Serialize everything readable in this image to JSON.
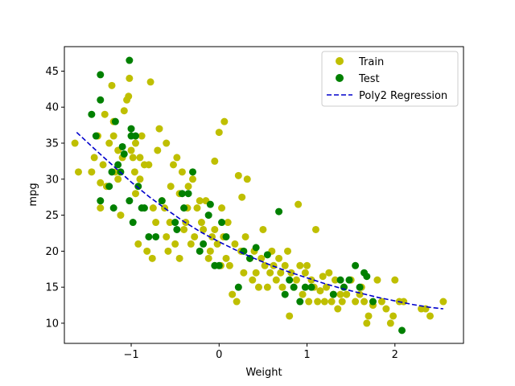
{
  "chart_data": {
    "type": "scatter",
    "title": "",
    "xlabel": "Weight",
    "ylabel": "mpg",
    "xlim": [
      -1.76,
      2.78
    ],
    "ylim": [
      7.2,
      48.4
    ],
    "x_ticks": [
      -1,
      0,
      1,
      2
    ],
    "y_ticks": [
      10,
      15,
      20,
      25,
      30,
      35,
      40,
      45
    ],
    "grid": false,
    "legend_position": "top-right",
    "colors": {
      "train": "#bfbf00",
      "test": "#008000",
      "regression": "#0000cc"
    },
    "legend": [
      {
        "label": "Train",
        "marker": "circle",
        "color": "#bfbf00"
      },
      {
        "label": "Test",
        "marker": "circle",
        "color": "#008000"
      },
      {
        "label": "Poly2 Regression",
        "marker": "dashed-line",
        "color": "#0000cc"
      }
    ],
    "series": [
      {
        "name": "Train",
        "kind": "points",
        "color": "#bfbf00",
        "points": [
          [
            -1.64,
            35
          ],
          [
            -1.6,
            31
          ],
          [
            -1.45,
            31
          ],
          [
            -1.42,
            33
          ],
          [
            -1.38,
            36
          ],
          [
            -1.35,
            26
          ],
          [
            -1.35,
            29.5
          ],
          [
            -1.32,
            32
          ],
          [
            -1.3,
            39
          ],
          [
            -1.28,
            29
          ],
          [
            -1.25,
            35
          ],
          [
            -1.22,
            43
          ],
          [
            -1.2,
            36
          ],
          [
            -1.2,
            38
          ],
          [
            -1.18,
            31
          ],
          [
            -1.15,
            30
          ],
          [
            -1.15,
            34
          ],
          [
            -1.12,
            25
          ],
          [
            -1.1,
            33
          ],
          [
            -1.08,
            39.5
          ],
          [
            -1.05,
            41
          ],
          [
            -1.03,
            41.5
          ],
          [
            -1.02,
            44
          ],
          [
            -1.0,
            34
          ],
          [
            -0.98,
            33
          ],
          [
            -0.96,
            31
          ],
          [
            -0.95,
            28
          ],
          [
            -0.95,
            35
          ],
          [
            -0.92,
            21
          ],
          [
            -0.9,
            33
          ],
          [
            -0.9,
            30
          ],
          [
            -0.88,
            36
          ],
          [
            -0.85,
            32
          ],
          [
            -0.82,
            20
          ],
          [
            -0.8,
            32
          ],
          [
            -0.78,
            43.5
          ],
          [
            -0.76,
            19
          ],
          [
            -0.75,
            26
          ],
          [
            -0.72,
            24
          ],
          [
            -0.7,
            34
          ],
          [
            -0.68,
            37
          ],
          [
            -0.65,
            27
          ],
          [
            -0.62,
            26
          ],
          [
            -0.6,
            22
          ],
          [
            -0.6,
            35
          ],
          [
            -0.58,
            20
          ],
          [
            -0.56,
            24
          ],
          [
            -0.55,
            29
          ],
          [
            -0.52,
            32
          ],
          [
            -0.5,
            21
          ],
          [
            -0.48,
            33
          ],
          [
            -0.45,
            28
          ],
          [
            -0.45,
            19
          ],
          [
            -0.42,
            31
          ],
          [
            -0.4,
            23
          ],
          [
            -0.38,
            24
          ],
          [
            -0.36,
            26
          ],
          [
            -0.35,
            29
          ],
          [
            -0.32,
            21
          ],
          [
            -0.3,
            30
          ],
          [
            -0.28,
            22
          ],
          [
            -0.25,
            26
          ],
          [
            -0.22,
            27
          ],
          [
            -0.2,
            24
          ],
          [
            -0.18,
            23
          ],
          [
            -0.15,
            27
          ],
          [
            -0.12,
            19
          ],
          [
            -0.1,
            20
          ],
          [
            -0.08,
            22
          ],
          [
            -0.05,
            23
          ],
          [
            -0.05,
            32.5
          ],
          [
            -0.02,
            21
          ],
          [
            0.0,
            36.5
          ],
          [
            0.02,
            18
          ],
          [
            0.03,
            26
          ],
          [
            0.05,
            22
          ],
          [
            0.06,
            38
          ],
          [
            0.08,
            19
          ],
          [
            0.1,
            24
          ],
          [
            0.12,
            18
          ],
          [
            0.15,
            14
          ],
          [
            0.18,
            21
          ],
          [
            0.2,
            13
          ],
          [
            0.22,
            30.5
          ],
          [
            0.25,
            20
          ],
          [
            0.26,
            27.5
          ],
          [
            0.28,
            17
          ],
          [
            0.3,
            22
          ],
          [
            0.32,
            30
          ],
          [
            0.35,
            19
          ],
          [
            0.38,
            16
          ],
          [
            0.4,
            20
          ],
          [
            0.42,
            17
          ],
          [
            0.45,
            15
          ],
          [
            0.48,
            19
          ],
          [
            0.5,
            23
          ],
          [
            0.52,
            18
          ],
          [
            0.55,
            15
          ],
          [
            0.58,
            17
          ],
          [
            0.6,
            20
          ],
          [
            0.62,
            18
          ],
          [
            0.65,
            16
          ],
          [
            0.68,
            19
          ],
          [
            0.7,
            17
          ],
          [
            0.72,
            15
          ],
          [
            0.75,
            18
          ],
          [
            0.78,
            20
          ],
          [
            0.8,
            11
          ],
          [
            0.82,
            17
          ],
          [
            0.85,
            15
          ],
          [
            0.88,
            16
          ],
          [
            0.9,
            26.5
          ],
          [
            0.92,
            18
          ],
          [
            0.95,
            14
          ],
          [
            0.98,
            17
          ],
          [
            1.0,
            18
          ],
          [
            1.02,
            13
          ],
          [
            1.05,
            16
          ],
          [
            1.08,
            15
          ],
          [
            1.1,
            23
          ],
          [
            1.12,
            13
          ],
          [
            1.15,
            14.5
          ],
          [
            1.18,
            16.5
          ],
          [
            1.2,
            13
          ],
          [
            1.22,
            15
          ],
          [
            1.25,
            17
          ],
          [
            1.28,
            13
          ],
          [
            1.3,
            14
          ],
          [
            1.32,
            16
          ],
          [
            1.35,
            12
          ],
          [
            1.38,
            14
          ],
          [
            1.4,
            13
          ],
          [
            1.42,
            15
          ],
          [
            1.45,
            14
          ],
          [
            1.5,
            16
          ],
          [
            1.55,
            13
          ],
          [
            1.6,
            14
          ],
          [
            1.62,
            15
          ],
          [
            1.65,
            13
          ],
          [
            1.68,
            10
          ],
          [
            1.7,
            11
          ],
          [
            1.75,
            12.5
          ],
          [
            1.8,
            16
          ],
          [
            1.85,
            13
          ],
          [
            1.9,
            12
          ],
          [
            1.95,
            10
          ],
          [
            1.98,
            11
          ],
          [
            2.0,
            16
          ],
          [
            2.05,
            13
          ],
          [
            2.1,
            13
          ],
          [
            2.3,
            12
          ],
          [
            2.35,
            12
          ],
          [
            2.4,
            11
          ],
          [
            2.55,
            13
          ]
        ]
      },
      {
        "name": "Test",
        "kind": "points",
        "color": "#008000",
        "points": [
          [
            -1.45,
            39
          ],
          [
            -1.4,
            36
          ],
          [
            -1.35,
            44.5
          ],
          [
            -1.35,
            41
          ],
          [
            -1.35,
            27
          ],
          [
            -1.25,
            29
          ],
          [
            -1.22,
            31
          ],
          [
            -1.2,
            26
          ],
          [
            -1.18,
            38
          ],
          [
            -1.15,
            32
          ],
          [
            -1.12,
            31
          ],
          [
            -1.1,
            34.5
          ],
          [
            -1.08,
            33.5
          ],
          [
            -1.02,
            46.5
          ],
          [
            -1.02,
            27
          ],
          [
            -1.0,
            36
          ],
          [
            -1.0,
            37
          ],
          [
            -0.98,
            24
          ],
          [
            -0.95,
            36
          ],
          [
            -0.92,
            29
          ],
          [
            -0.88,
            26
          ],
          [
            -0.85,
            26
          ],
          [
            -0.8,
            22
          ],
          [
            -0.72,
            22
          ],
          [
            -0.65,
            27
          ],
          [
            -0.5,
            24
          ],
          [
            -0.48,
            23
          ],
          [
            -0.42,
            28
          ],
          [
            -0.4,
            26
          ],
          [
            -0.35,
            28
          ],
          [
            -0.3,
            31
          ],
          [
            -0.22,
            20
          ],
          [
            -0.18,
            21
          ],
          [
            -0.12,
            25
          ],
          [
            -0.1,
            26.5
          ],
          [
            -0.05,
            18
          ],
          [
            0.0,
            18
          ],
          [
            0.03,
            24
          ],
          [
            0.08,
            22
          ],
          [
            0.22,
            15
          ],
          [
            0.28,
            20
          ],
          [
            0.35,
            19
          ],
          [
            0.42,
            20.5
          ],
          [
            0.55,
            19.5
          ],
          [
            0.68,
            25.5
          ],
          [
            0.75,
            14
          ],
          [
            0.8,
            16
          ],
          [
            0.85,
            15
          ],
          [
            0.92,
            13
          ],
          [
            0.98,
            15
          ],
          [
            1.05,
            15
          ],
          [
            1.3,
            14
          ],
          [
            1.38,
            16
          ],
          [
            1.42,
            15
          ],
          [
            1.48,
            16
          ],
          [
            1.55,
            18
          ],
          [
            1.6,
            15
          ],
          [
            1.65,
            17
          ],
          [
            1.68,
            16.5
          ],
          [
            1.75,
            13
          ],
          [
            2.08,
            9
          ]
        ]
      },
      {
        "name": "Poly2 Regression",
        "kind": "line",
        "color": "#0000cc",
        "x": [
          -1.62,
          -1.4,
          -1.2,
          -1.0,
          -0.8,
          -0.6,
          -0.4,
          -0.2,
          0.0,
          0.2,
          0.4,
          0.6,
          0.8,
          1.0,
          1.2,
          1.4,
          1.6,
          1.8,
          2.0,
          2.2,
          2.4,
          2.55
        ],
        "y": [
          36.5,
          34.0,
          31.8,
          29.6,
          27.6,
          25.8,
          24.1,
          22.6,
          21.3,
          20.1,
          19.0,
          18.0,
          17.1,
          16.3,
          15.5,
          14.8,
          14.2,
          13.6,
          13.1,
          12.6,
          12.2,
          12.0
        ]
      }
    ]
  }
}
